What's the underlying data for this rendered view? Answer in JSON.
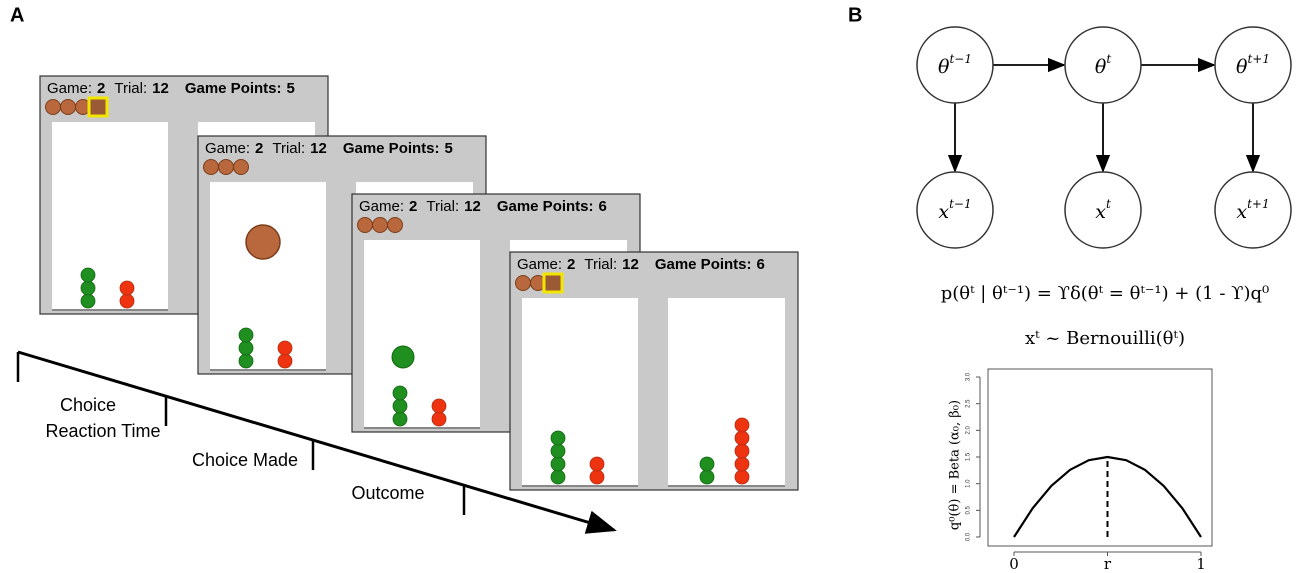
{
  "panel_a": {
    "label": "A",
    "screens": [
      {
        "game_label": "Game:",
        "game": 2,
        "trial_label": "Trial:",
        "trial": 12,
        "points_label": "Game Points:",
        "points": 5
      },
      {
        "game_label": "Game:",
        "game": 2,
        "trial_label": "Trial:",
        "trial": 12,
        "points_label": "Game Points:",
        "points": 5
      },
      {
        "game_label": "Game:",
        "game": 2,
        "trial_label": "Trial:",
        "trial": 12,
        "points_label": "Game Points:",
        "points": 6
      },
      {
        "game_label": "Game:",
        "game": 2,
        "trial_label": "Trial:",
        "trial": 12,
        "points_label": "Game Points:",
        "points": 6
      }
    ],
    "timeline": [
      [
        "Choice",
        "Reaction Time"
      ],
      [
        "Choice Made"
      ],
      [
        "Outcome"
      ]
    ]
  },
  "panel_b": {
    "label": "B",
    "nodes": [
      {
        "base": "θ",
        "sup": "t−1"
      },
      {
        "base": "θ",
        "sup": "t"
      },
      {
        "base": "θ",
        "sup": "t+1"
      },
      {
        "base": "x",
        "sup": "t−1"
      },
      {
        "base": "x",
        "sup": "t"
      },
      {
        "base": "x",
        "sup": "t+1"
      }
    ],
    "equations": [
      "p(θᵗ | θᵗ⁻¹) = ϒδ(θᵗ = θᵗ⁻¹) + (1 - ϒ)q⁰",
      "xᵗ ~ Bernouilli(θᵗ)"
    ],
    "plot": {
      "ylabel": "q⁰(θ) = Beta (α₀, β₀)",
      "xlim": [
        0,
        1
      ],
      "ylim": [
        0,
        3
      ],
      "xticks": [
        {
          "value": 0,
          "label": "0"
        },
        {
          "value": 0.5,
          "label": "r"
        },
        {
          "value": 1,
          "label": "1"
        }
      ],
      "yticks": [
        {
          "value": 0,
          "label": "0.0"
        },
        {
          "value": 0.5,
          "label": "0.5"
        },
        {
          "value": 1,
          "label": "1.0"
        },
        {
          "value": 1.5,
          "label": "1.5"
        },
        {
          "value": 2,
          "label": "2.0"
        },
        {
          "value": 2.5,
          "label": "2.5"
        },
        {
          "value": 3,
          "label": "3.0"
        }
      ],
      "curve": {
        "x": [
          0,
          0.1,
          0.2,
          0.3,
          0.4,
          0.5,
          0.6,
          0.7,
          0.8,
          0.9,
          1
        ],
        "y": [
          0,
          0.54,
          0.96,
          1.26,
          1.44,
          1.5,
          1.44,
          1.26,
          0.96,
          0.54,
          0
        ]
      }
    }
  }
}
